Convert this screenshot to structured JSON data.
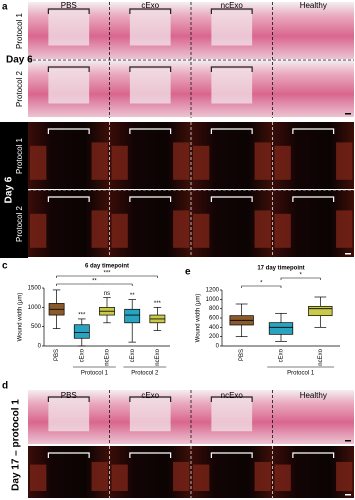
{
  "figure": {
    "a": {
      "label": "a",
      "columns": [
        "PBS",
        "cExo",
        "ncExo",
        "Healthy"
      ],
      "rows": [
        "Protocol 1",
        "Protocol 2"
      ],
      "day": "Day 6"
    },
    "b": {
      "label": "b",
      "rows": [
        "Protocol 1",
        "Protocol 2"
      ],
      "day": "Day 6"
    },
    "d": {
      "label": "d",
      "columns": [
        "PBS",
        "cExo",
        "ncExo",
        "Healthy"
      ],
      "side": "Day 17 – protocol 1"
    }
  },
  "chart_data": [
    {
      "type": "box",
      "panel": "c",
      "title": "6 day timepoint",
      "y_label": "Wound width (μm)",
      "categories": [
        "PBS",
        "cExo",
        "ncExo",
        "cExo",
        "ncExo"
      ],
      "colors": [
        "#8b5a2b",
        "#29a3bf",
        "#c9c94a",
        "#29a3bf",
        "#c9c94a"
      ],
      "min": [
        450,
        0,
        600,
        100,
        400
      ],
      "q1": [
        800,
        200,
        800,
        600,
        600
      ],
      "median": [
        950,
        350,
        900,
        800,
        700
      ],
      "q3": [
        1100,
        550,
        1000,
        950,
        800
      ],
      "max": [
        1450,
        700,
        1250,
        1200,
        1000
      ],
      "annotations": [
        null,
        "***",
        "ns",
        "**",
        "***"
      ],
      "brackets": [
        {
          "from": 0,
          "to": 3,
          "label": "**"
        },
        {
          "from": 0,
          "to": 4,
          "label": "***"
        }
      ],
      "groups": [
        {
          "name": "Protocol 1",
          "from": 1,
          "to": 2
        },
        {
          "name": "Protocol 2",
          "from": 3,
          "to": 4
        }
      ],
      "ylim": [
        0,
        1500
      ],
      "yticks": [
        0,
        500,
        1000,
        1500
      ]
    },
    {
      "type": "box",
      "panel": "e",
      "title": "17 day timepoint",
      "y_label": "Wound width (μm)",
      "categories": [
        "PBS",
        "cExo",
        "ncExo"
      ],
      "colors": [
        "#8b5a2b",
        "#29a3bf",
        "#c9c94a"
      ],
      "min": [
        200,
        100,
        400
      ],
      "q1": [
        450,
        250,
        650
      ],
      "median": [
        550,
        400,
        800
      ],
      "q3": [
        650,
        500,
        850
      ],
      "max": [
        900,
        700,
        1050
      ],
      "annotations": [
        null,
        null,
        null
      ],
      "brackets": [
        {
          "from": 0,
          "to": 1,
          "label": "*"
        },
        {
          "from": 1,
          "to": 2,
          "label": "*"
        }
      ],
      "groups": [
        {
          "name": "Protocol 1",
          "from": 1,
          "to": 2
        }
      ],
      "ylim": [
        0,
        1200
      ],
      "yticks": [
        0,
        200,
        400,
        600,
        800,
        1000,
        1200
      ]
    }
  ]
}
